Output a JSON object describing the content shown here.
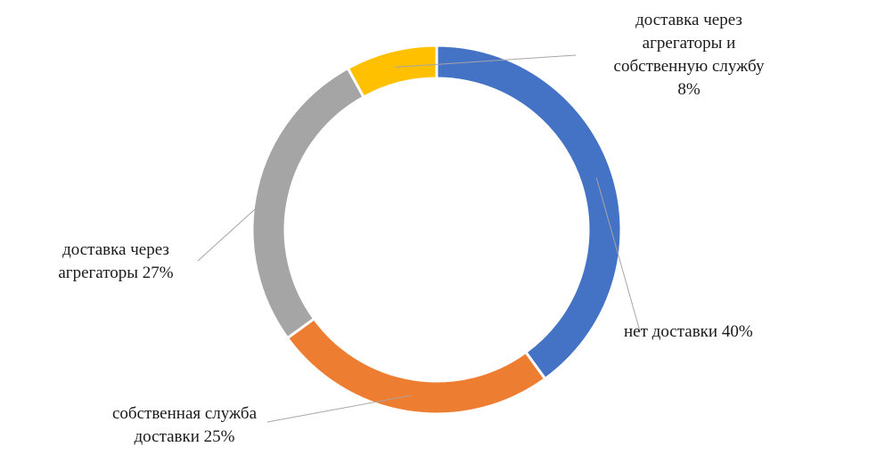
{
  "chart_data": {
    "type": "pie",
    "donut": true,
    "title": "",
    "slices": [
      {
        "name": "нет доставки",
        "value": 40,
        "label": "нет доставки 40%",
        "color": "#4472C4"
      },
      {
        "name": "собственная служба доставки",
        "value": 25,
        "label": "собственная служба\nдоставки  25%",
        "color": "#ED7D31"
      },
      {
        "name": "доставка через агрегаторы",
        "value": 27,
        "label": "доставка через\nагрегаторы  27%",
        "color": "#A5A5A5"
      },
      {
        "name": "доставка через агрегаторы и собственную службу",
        "value": 8,
        "label": "доставка через\nагрегаторы и\nсобственную службу\n8%",
        "color": "#FFC000"
      }
    ],
    "legend": "none"
  }
}
